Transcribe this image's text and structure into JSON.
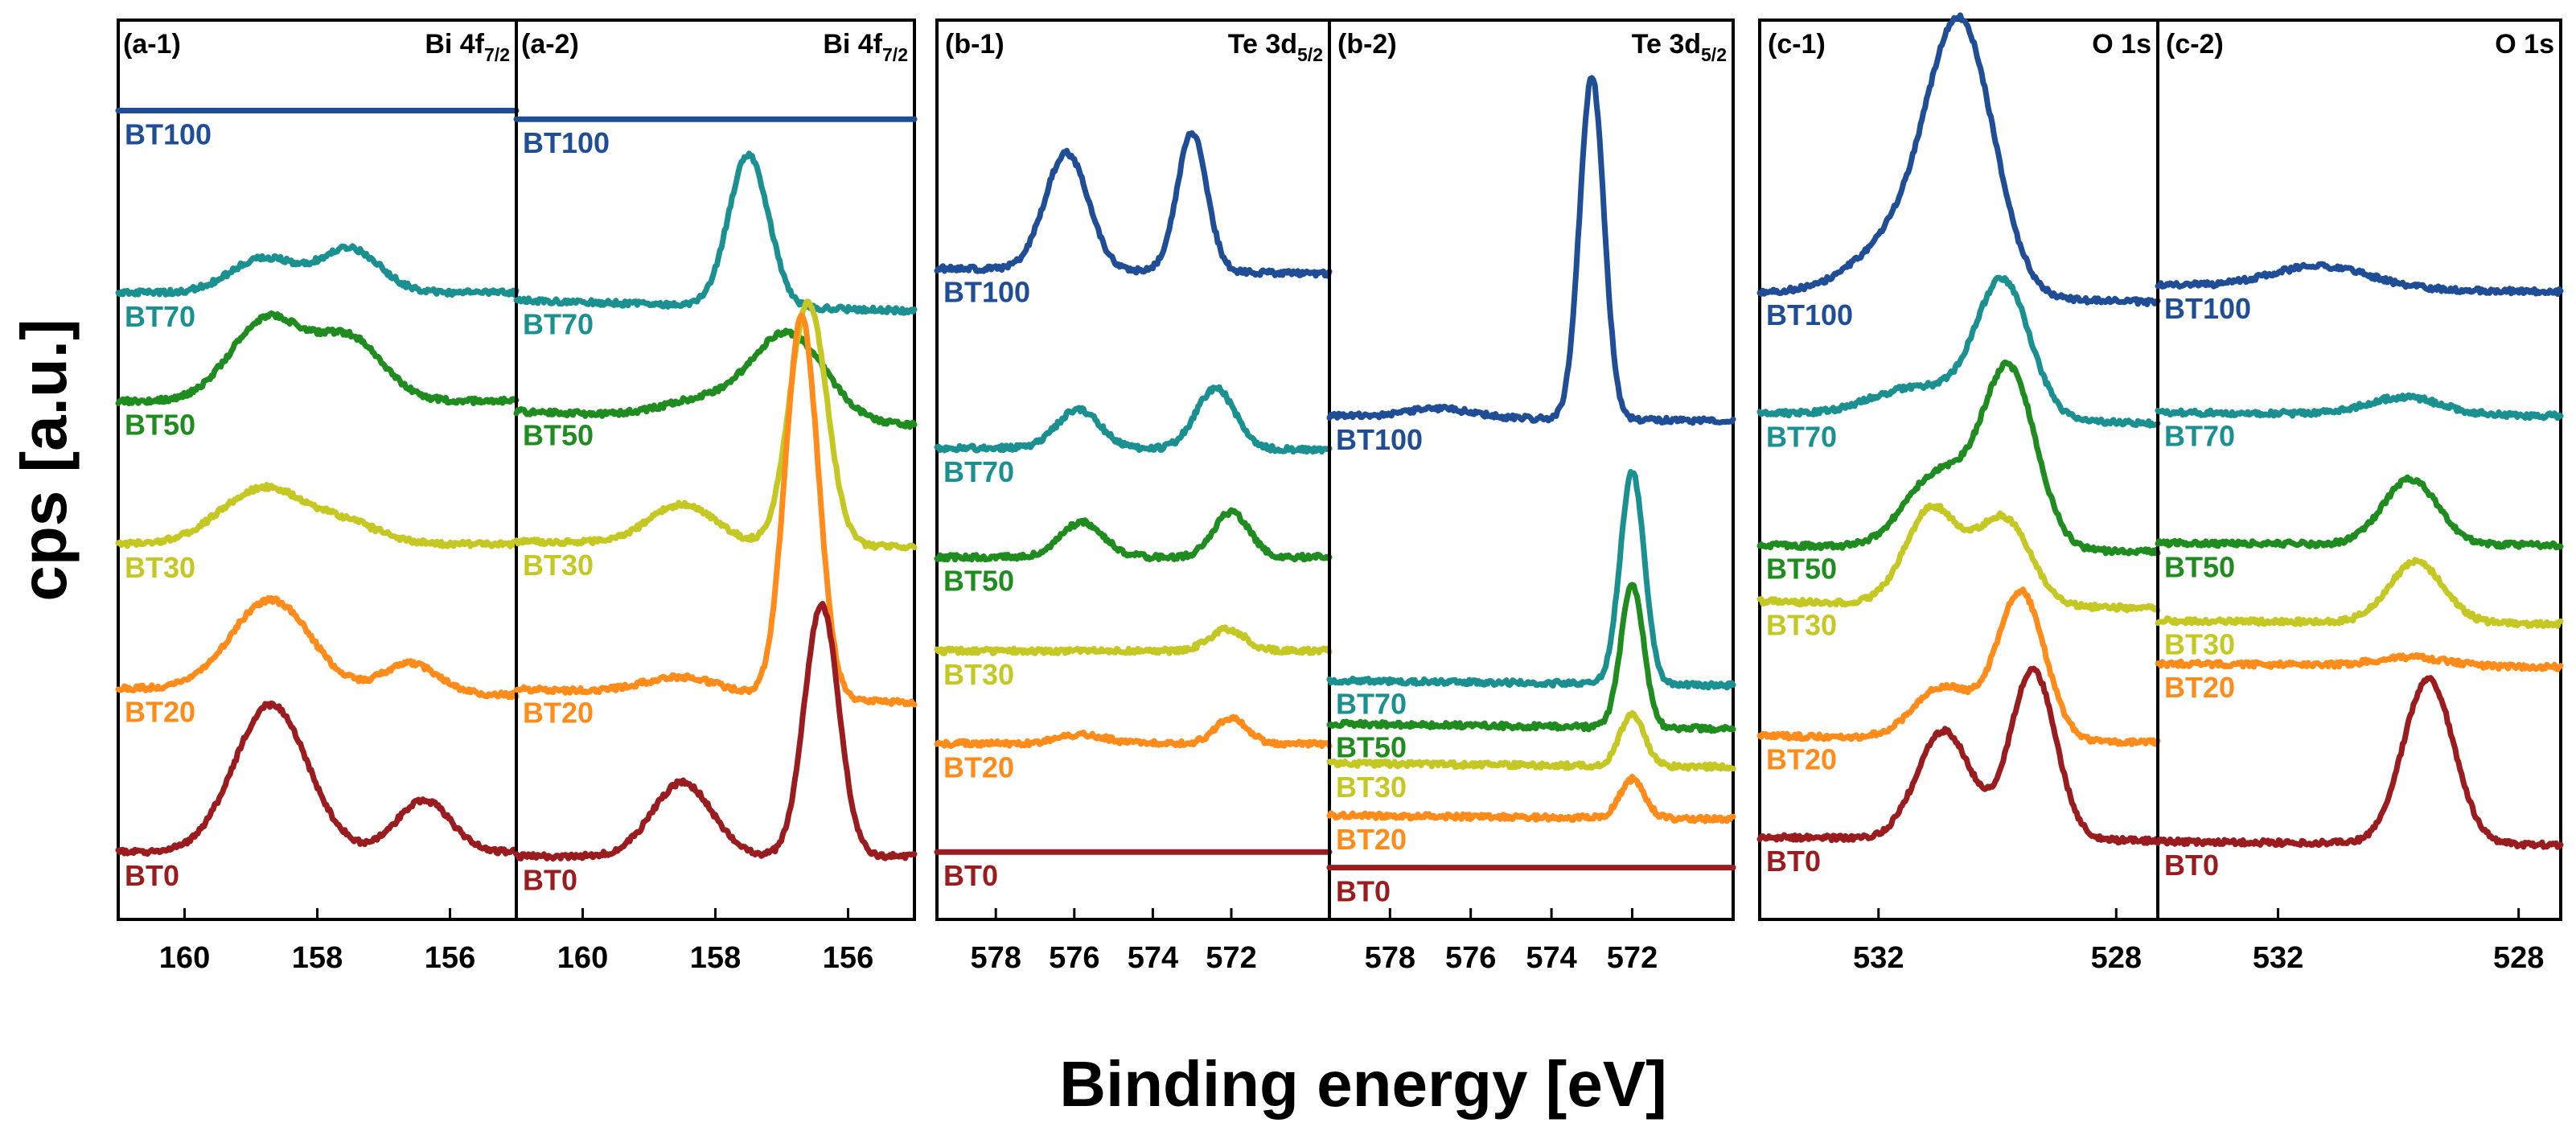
{
  "chart_data": {
    "type": "line",
    "xlabel": "Binding energy [eV]",
    "ylabel": "cps [a.u.]",
    "series_colors": {
      "BT0": "#9b1c1f",
      "BT20": "#ff8c1a",
      "BT30": "#c5c823",
      "BT50": "#1f8c1f",
      "BT70": "#1a9090",
      "BT100": "#1f4e96"
    },
    "panels": [
      {
        "id": "a-1",
        "label": "(a-1)",
        "element": "Bi 4f",
        "element_sub": "7/2",
        "xlim": [
          161,
          155
        ],
        "ticks": [
          160,
          158,
          156
        ],
        "tick_labels": [
          "160",
          "158",
          "156"
        ],
        "series": [
          {
            "name": "BT100",
            "label": "BT100",
            "baseline": 0.93,
            "slope": 0,
            "peaks": []
          },
          {
            "name": "BT70",
            "label": "BT70",
            "baseline": 0.72,
            "slope": 0,
            "peaks": [
              {
                "c": 158.8,
                "h": 0.04,
                "w": 0.5
              },
              {
                "c": 157.5,
                "h": 0.05,
                "w": 0.45
              }
            ]
          },
          {
            "name": "BT50",
            "label": "BT50",
            "baseline": 0.595,
            "slope": 0,
            "peaks": [
              {
                "c": 158.75,
                "h": 0.095,
                "w": 0.55
              },
              {
                "c": 157.5,
                "h": 0.07,
                "w": 0.5
              }
            ]
          },
          {
            "name": "BT30",
            "label": "BT30",
            "baseline": 0.43,
            "slope": 0,
            "peaks": [
              {
                "c": 158.8,
                "h": 0.065,
                "w": 0.65
              },
              {
                "c": 157.5,
                "h": 0.02,
                "w": 0.5
              }
            ]
          },
          {
            "name": "BT20",
            "label": "BT20",
            "baseline": 0.26,
            "slope": 0.004,
            "peaks": [
              {
                "c": 158.7,
                "h": 0.105,
                "w": 0.6
              },
              {
                "c": 156.6,
                "h": 0.035,
                "w": 0.4
              }
            ]
          },
          {
            "name": "BT0",
            "label": "BT0",
            "baseline": 0.075,
            "slope": 0,
            "peaks": [
              {
                "c": 158.7,
                "h": 0.17,
                "w": 0.55
              },
              {
                "c": 156.4,
                "h": 0.06,
                "w": 0.4
              }
            ]
          }
        ]
      },
      {
        "id": "a-2",
        "label": "(a-2)",
        "element": "Bi 4f",
        "element_sub": "7/2",
        "xlim": [
          161,
          155
        ],
        "ticks": [
          160,
          158,
          156
        ],
        "tick_labels": [
          "160",
          "158",
          "156"
        ],
        "series": [
          {
            "name": "BT100",
            "label": "BT100",
            "baseline": 0.92,
            "slope": 0,
            "peaks": []
          },
          {
            "name": "BT70",
            "label": "BT70",
            "baseline": 0.705,
            "slope": 0.006,
            "peaks": [
              {
                "c": 157.5,
                "h": 0.175,
                "w": 0.3
              }
            ]
          },
          {
            "name": "BT50",
            "label": "BT50",
            "baseline": 0.575,
            "slope": 0.008,
            "peaks": [
              {
                "c": 156.9,
                "h": 0.1,
                "w": 0.55
              },
              {
                "c": 158.2,
                "h": 0.02,
                "w": 0.6
              }
            ]
          },
          {
            "name": "BT30",
            "label": "BT30",
            "baseline": 0.43,
            "slope": 0.003,
            "peaks": [
              {
                "c": 156.6,
                "h": 0.28,
                "w": 0.28
              },
              {
                "c": 158.5,
                "h": 0.045,
                "w": 0.5
              }
            ]
          },
          {
            "name": "BT20",
            "label": "BT20",
            "baseline": 0.255,
            "slope": 0.008,
            "peaks": [
              {
                "c": 156.7,
                "h": 0.44,
                "w": 0.25
              },
              {
                "c": 158.5,
                "h": 0.02,
                "w": 0.6
              }
            ]
          },
          {
            "name": "BT0",
            "label": "BT0",
            "baseline": 0.07,
            "slope": 0,
            "peaks": [
              {
                "c": 156.4,
                "h": 0.29,
                "w": 0.26
              },
              {
                "c": 158.5,
                "h": 0.085,
                "w": 0.45
              }
            ]
          }
        ]
      },
      {
        "id": "b-1",
        "label": "(b-1)",
        "element": "Te 3d",
        "element_sub": "5/2",
        "xlim": [
          579.5,
          569.5
        ],
        "ticks": [
          578,
          576,
          574,
          572
        ],
        "tick_labels": [
          "578",
          "576",
          "574",
          "572"
        ],
        "series": [
          {
            "name": "BT100",
            "label": "BT100",
            "baseline": 0.745,
            "slope": 0.003,
            "peaks": [
              {
                "c": 576.2,
                "h": 0.135,
                "w": 0.55
              },
              {
                "c": 573.0,
                "h": 0.16,
                "w": 0.38
              }
            ]
          },
          {
            "name": "BT70",
            "label": "BT70",
            "baseline": 0.54,
            "slope": 0.001,
            "peaks": [
              {
                "c": 575.9,
                "h": 0.045,
                "w": 0.55
              },
              {
                "c": 572.4,
                "h": 0.07,
                "w": 0.5
              }
            ]
          },
          {
            "name": "BT50",
            "label": "BT50",
            "baseline": 0.415,
            "slope": 0,
            "peaks": [
              {
                "c": 575.8,
                "h": 0.04,
                "w": 0.55
              },
              {
                "c": 572.0,
                "h": 0.052,
                "w": 0.45
              }
            ]
          },
          {
            "name": "BT30",
            "label": "BT30",
            "baseline": 0.307,
            "slope": 0,
            "peaks": [
              {
                "c": 572.1,
                "h": 0.025,
                "w": 0.45
              }
            ]
          },
          {
            "name": "BT20",
            "label": "BT20",
            "baseline": 0.2,
            "slope": 0,
            "peaks": [
              {
                "c": 572.0,
                "h": 0.03,
                "w": 0.4
              },
              {
                "c": 575.8,
                "h": 0.01,
                "w": 0.6
              }
            ]
          },
          {
            "name": "BT0",
            "label": "BT0",
            "baseline": 0.075,
            "slope": 0,
            "peaks": []
          }
        ]
      },
      {
        "id": "b-2",
        "label": "(b-2)",
        "element": "Te 3d",
        "element_sub": "5/2",
        "xlim": [
          579.5,
          569.5
        ],
        "ticks": [
          578,
          576,
          574,
          572
        ],
        "tick_labels": [
          "578",
          "576",
          "574",
          "572"
        ],
        "series": [
          {
            "name": "BT100",
            "label": "BT100",
            "baseline": 0.575,
            "slope": 0.003,
            "peaks": [
              {
                "c": 573.0,
                "h": 0.395,
                "w": 0.3
              },
              {
                "c": 576.8,
                "h": 0.01,
                "w": 0.8
              }
            ]
          },
          {
            "name": "BT70",
            "label": "BT70",
            "baseline": 0.27,
            "slope": 0.003,
            "peaks": [
              {
                "c": 572.0,
                "h": 0.245,
                "w": 0.3
              }
            ]
          },
          {
            "name": "BT50",
            "label": "BT50",
            "baseline": 0.22,
            "slope": 0.003,
            "peaks": [
              {
                "c": 572.0,
                "h": 0.165,
                "w": 0.28
              }
            ]
          },
          {
            "name": "BT30",
            "label": "BT30",
            "baseline": 0.175,
            "slope": 0.002,
            "peaks": [
              {
                "c": 572.0,
                "h": 0.06,
                "w": 0.3
              }
            ]
          },
          {
            "name": "BT20",
            "label": "BT20",
            "baseline": 0.115,
            "slope": 0.002,
            "peaks": [
              {
                "c": 572.0,
                "h": 0.045,
                "w": 0.3
              }
            ]
          },
          {
            "name": "BT0",
            "label": "BT0",
            "baseline": 0.057,
            "slope": 0,
            "peaks": []
          }
        ]
      },
      {
        "id": "c-1",
        "label": "(c-1)",
        "element": "O 1s",
        "element_sub": "",
        "xlim": [
          534.0,
          527.3
        ],
        "ticks": [
          532,
          528
        ],
        "tick_labels": [
          "532",
          "528"
        ],
        "series": [
          {
            "name": "BT100",
            "label": "BT100",
            "baseline": 0.715,
            "slope": 0.006,
            "peaks": [
              {
                "c": 530.6,
                "h": 0.285,
                "w": 0.55
              },
              {
                "c": 531.5,
                "h": 0.07,
                "w": 0.8
              }
            ]
          },
          {
            "name": "BT70",
            "label": "BT70",
            "baseline": 0.575,
            "slope": 0.006,
            "peaks": [
              {
                "c": 529.9,
                "h": 0.155,
                "w": 0.45
              },
              {
                "c": 531.3,
                "h": 0.035,
                "w": 0.8
              }
            ]
          },
          {
            "name": "BT50",
            "label": "BT50",
            "baseline": 0.425,
            "slope": 0.004,
            "peaks": [
              {
                "c": 529.8,
                "h": 0.205,
                "w": 0.45
              },
              {
                "c": 531.0,
                "h": 0.085,
                "w": 0.55
              }
            ]
          },
          {
            "name": "BT30",
            "label": "BT30",
            "baseline": 0.36,
            "slope": 0.004,
            "peaks": [
              {
                "c": 531.1,
                "h": 0.11,
                "w": 0.45
              },
              {
                "c": 529.9,
                "h": 0.1,
                "w": 0.45
              }
            ]
          },
          {
            "name": "BT20",
            "label": "BT20",
            "baseline": 0.205,
            "slope": 0.004,
            "peaks": [
              {
                "c": 529.6,
                "h": 0.17,
                "w": 0.4
              },
              {
                "c": 530.9,
                "h": 0.06,
                "w": 0.5
              }
            ]
          },
          {
            "name": "BT0",
            "label": "BT0",
            "baseline": 0.09,
            "slope": 0.002,
            "peaks": [
              {
                "c": 529.4,
                "h": 0.195,
                "w": 0.38
              },
              {
                "c": 530.9,
                "h": 0.125,
                "w": 0.45
              }
            ]
          }
        ]
      },
      {
        "id": "c-2",
        "label": "(c-2)",
        "element": "O 1s",
        "element_sub": "",
        "xlim": [
          534.0,
          527.3
        ],
        "ticks": [
          532,
          528
        ],
        "tick_labels": [
          "532",
          "528"
        ],
        "series": [
          {
            "name": "BT100",
            "label": "BT100",
            "baseline": 0.725,
            "slope": 0.004,
            "peaks": [
              {
                "c": 531.3,
                "h": 0.025,
                "w": 0.8
              }
            ]
          },
          {
            "name": "BT70",
            "label": "BT70",
            "baseline": 0.58,
            "slope": 0.002,
            "peaks": [
              {
                "c": 529.9,
                "h": 0.02,
                "w": 0.6
              }
            ]
          },
          {
            "name": "BT50",
            "label": "BT50",
            "baseline": 0.43,
            "slope": 0.001,
            "peaks": [
              {
                "c": 529.8,
                "h": 0.075,
                "w": 0.45
              }
            ]
          },
          {
            "name": "BT30",
            "label": "BT30",
            "baseline": 0.34,
            "slope": 0.002,
            "peaks": [
              {
                "c": 529.7,
                "h": 0.07,
                "w": 0.45
              }
            ]
          },
          {
            "name": "BT20",
            "label": "BT20",
            "baseline": 0.29,
            "slope": 0.002,
            "peaks": [
              {
                "c": 529.8,
                "h": 0.01,
                "w": 0.6
              }
            ]
          },
          {
            "name": "BT0",
            "label": "BT0",
            "baseline": 0.085,
            "slope": 0.002,
            "peaks": [
              {
                "c": 529.5,
                "h": 0.19,
                "w": 0.42
              }
            ]
          }
        ]
      }
    ]
  }
}
